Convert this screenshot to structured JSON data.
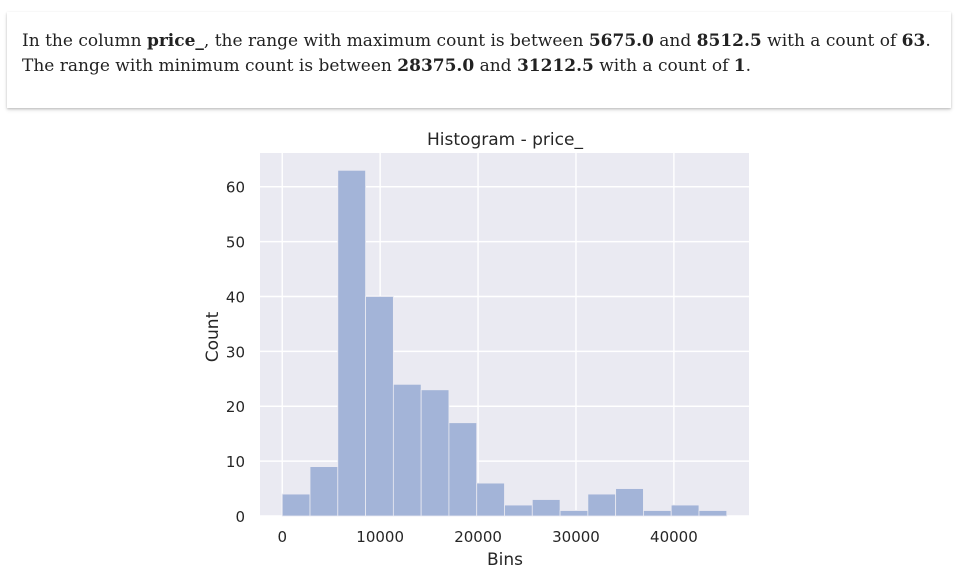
{
  "summary": {
    "line1": {
      "prefix": "In the column ",
      "column": "price_",
      "mid1": ", the range with maximum count is between ",
      "low": "5675.0",
      "mid2": " and ",
      "high": "8512.5",
      "mid3": " with a count of ",
      "count": "63",
      "suffix": "."
    },
    "line2": {
      "prefix": "The range with minimum count is between ",
      "low": "28375.0",
      "mid2": " and ",
      "high": "31212.5",
      "mid3": " with a count of ",
      "count": "1",
      "suffix": "."
    }
  },
  "chart_data": {
    "type": "bar",
    "title": "Histogram - price_",
    "xlabel": "Bins",
    "ylabel": "Count",
    "bin_edges": [
      0,
      2837.5,
      5675.0,
      8512.5,
      11350.0,
      14187.5,
      17025.0,
      19862.5,
      22700.0,
      25537.5,
      28375.0,
      31212.5,
      34050.0,
      36887.5,
      39725.0,
      42562.5,
      45400.0
    ],
    "values": [
      4,
      9,
      63,
      40,
      24,
      23,
      17,
      6,
      2,
      3,
      1,
      4,
      5,
      1,
      2,
      1
    ],
    "xlim": [
      -2270,
      47670
    ],
    "ylim": [
      0,
      66.15
    ],
    "xticks": [
      0,
      10000,
      20000,
      30000,
      40000
    ],
    "xtick_labels": [
      "0",
      "10000",
      "20000",
      "30000",
      "40000"
    ],
    "yticks": [
      0,
      10,
      20,
      30,
      40,
      50,
      60
    ],
    "ytick_labels": [
      "0",
      "10",
      "20",
      "30",
      "40",
      "50",
      "60"
    ],
    "grid": true,
    "colors": {
      "background": "#eaeaf2",
      "bar": "#a3b4d8",
      "grid": "#ffffff",
      "text": "#262626"
    }
  }
}
